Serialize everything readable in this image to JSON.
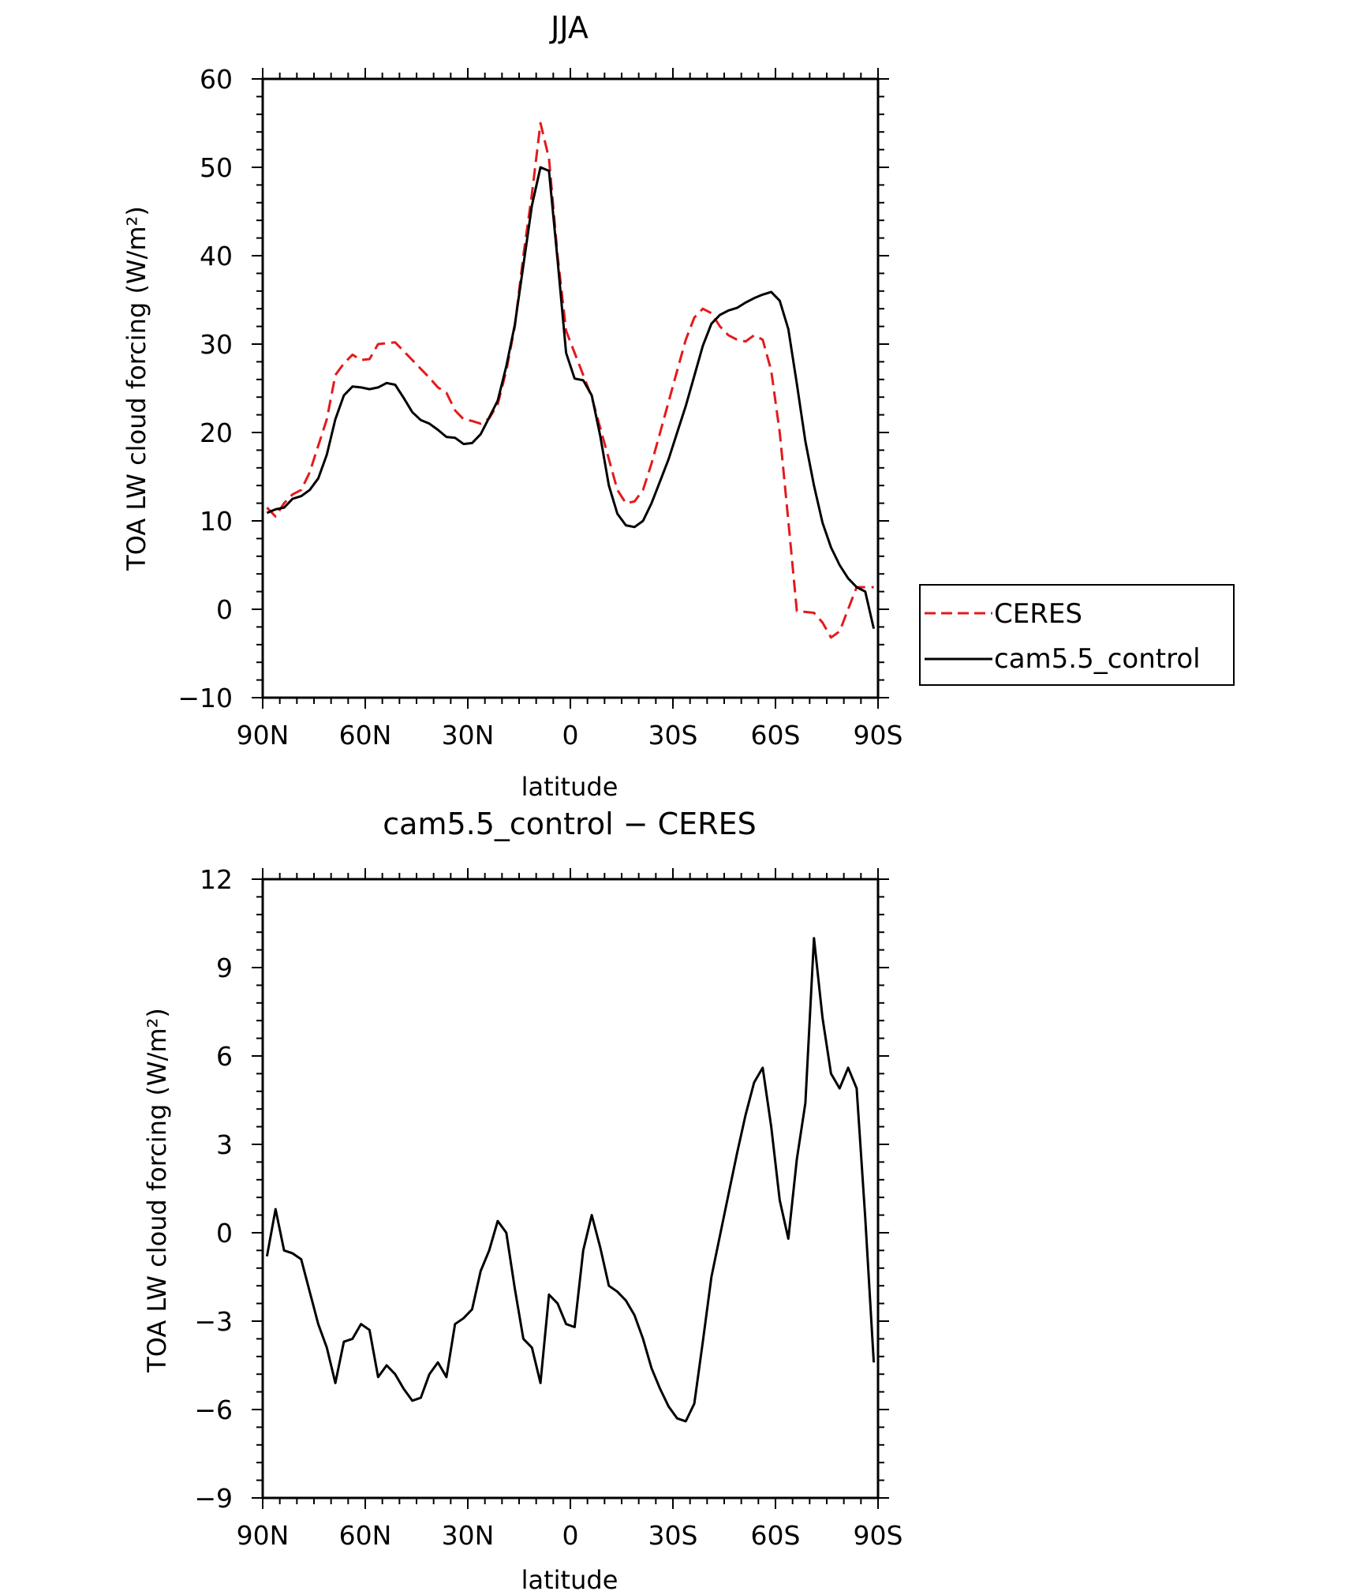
{
  "chart_data": [
    {
      "type": "line",
      "title": "JJA",
      "xlabel": "latitude",
      "ylabel": "TOA LW cloud forcing (W/m²)",
      "xlim": [
        90,
        -90
      ],
      "ylim": [
        -10,
        60
      ],
      "xticks": [
        90,
        60,
        30,
        0,
        -30,
        -60,
        -90
      ],
      "xtick_labels": [
        "90N",
        "60N",
        "30N",
        "0",
        "30S",
        "60S",
        "90S"
      ],
      "yticks": [
        -10,
        0,
        10,
        20,
        30,
        40,
        50,
        60
      ],
      "ytick_labels": [
        "−10",
        "0",
        "10",
        "20",
        "30",
        "40",
        "50",
        "60"
      ],
      "legend_position": "right",
      "series": [
        {
          "name": "CERES",
          "color": "#e31a1c",
          "dash": "dashed",
          "x": [
            88.75,
            86.25,
            83.75,
            81.25,
            78.75,
            76.25,
            73.75,
            71.25,
            68.75,
            66.25,
            63.75,
            61.25,
            58.75,
            56.25,
            53.75,
            51.25,
            48.75,
            46.25,
            43.75,
            41.25,
            38.75,
            36.25,
            33.75,
            31.25,
            28.75,
            26.25,
            23.75,
            21.25,
            18.75,
            16.25,
            13.75,
            11.25,
            8.75,
            6.25,
            3.75,
            1.25,
            -1.25,
            -3.75,
            -6.25,
            -8.75,
            -11.25,
            -13.75,
            -16.25,
            -18.75,
            -21.25,
            -23.75,
            -26.25,
            -28.75,
            -31.25,
            -33.75,
            -36.25,
            -38.75,
            -41.25,
            -43.75,
            -46.25,
            -48.75,
            -51.25,
            -53.75,
            -56.25,
            -58.75,
            -61.25,
            -63.75,
            -66.25,
            -68.75,
            -71.25,
            -73.75,
            -76.25,
            -78.75,
            -81.25,
            -83.75,
            -86.25,
            -88.75
          ],
          "y": [
            11.5,
            10.5,
            12.0,
            13.0,
            13.5,
            15.5,
            18.5,
            21.5,
            26.5,
            27.8,
            28.8,
            28.2,
            28.3,
            30.0,
            30.1,
            30.2,
            29.2,
            28.2,
            27.2,
            26.2,
            25.1,
            24.5,
            22.5,
            21.5,
            21.3,
            21.0,
            21.6,
            23.2,
            27.0,
            32.0,
            40.0,
            47.0,
            55.0,
            51.0,
            40.0,
            31.5,
            29.0,
            26.5,
            24.0,
            20.5,
            17.0,
            13.5,
            12.0,
            12.2,
            13.5,
            16.5,
            20.0,
            23.5,
            27.0,
            30.5,
            33.0,
            34.0,
            33.5,
            32.0,
            31.0,
            30.5,
            30.3,
            31.0,
            30.5,
            27.0,
            20.0,
            10.0,
            -0.2,
            -0.3,
            -0.4,
            -1.5,
            -3.2,
            -2.5,
            0.0,
            2.5,
            2.5,
            2.5
          ]
        },
        {
          "name": "cam5.5_control",
          "color": "#000000",
          "dash": "solid",
          "x": [
            88.75,
            86.25,
            83.75,
            81.25,
            78.75,
            76.25,
            73.75,
            71.25,
            68.75,
            66.25,
            63.75,
            61.25,
            58.75,
            56.25,
            53.75,
            51.25,
            48.75,
            46.25,
            43.75,
            41.25,
            38.75,
            36.25,
            33.75,
            31.25,
            28.75,
            26.25,
            23.75,
            21.25,
            18.75,
            16.25,
            13.75,
            11.25,
            8.75,
            6.25,
            3.75,
            1.25,
            -1.25,
            -3.75,
            -6.25,
            -8.75,
            -11.25,
            -13.75,
            -16.25,
            -18.75,
            -21.25,
            -23.75,
            -26.25,
            -28.75,
            -31.25,
            -33.75,
            -36.25,
            -38.75,
            -41.25,
            -43.75,
            -46.25,
            -48.75,
            -51.25,
            -53.75,
            -56.25,
            -58.75,
            -61.25,
            -63.75,
            -66.25,
            -68.75,
            -71.25,
            -73.75,
            -76.25,
            -78.75,
            -81.25,
            -83.75,
            -86.25,
            -88.75
          ],
          "y": [
            10.9,
            11.3,
            11.5,
            12.5,
            12.8,
            13.5,
            14.8,
            17.5,
            21.5,
            24.2,
            25.2,
            25.1,
            24.9,
            25.1,
            25.6,
            25.4,
            23.9,
            22.3,
            21.4,
            21.0,
            20.3,
            19.5,
            19.4,
            18.7,
            18.8,
            19.8,
            21.7,
            23.6,
            27.5,
            32.2,
            38.9,
            45.7,
            50.0,
            49.6,
            39.5,
            29.0,
            26.1,
            25.9,
            24.2,
            19.6,
            14.0,
            10.8,
            9.5,
            9.3,
            10.0,
            12.0,
            14.5,
            17.0,
            20.0,
            23.0,
            26.4,
            29.8,
            32.3,
            33.3,
            33.8,
            34.1,
            34.7,
            35.2,
            35.6,
            35.9,
            34.9,
            31.7,
            25.5,
            19.0,
            14.0,
            9.8,
            7.0,
            5.0,
            3.5,
            2.5,
            2.0,
            -2.2
          ]
        }
      ]
    },
    {
      "type": "line",
      "title": "cam5.5_control − CERES",
      "xlabel": "latitude",
      "ylabel": "TOA LW cloud forcing (W/m²)",
      "xlim": [
        90,
        -90
      ],
      "ylim": [
        -9,
        12
      ],
      "xticks": [
        90,
        60,
        30,
        0,
        -30,
        -60,
        -90
      ],
      "xtick_labels": [
        "90N",
        "60N",
        "30N",
        "0",
        "30S",
        "60S",
        "90S"
      ],
      "yticks": [
        -9,
        -6,
        -3,
        0,
        3,
        6,
        9,
        12
      ],
      "ytick_labels": [
        "−9",
        "−6",
        "−3",
        "0",
        "3",
        "6",
        "9",
        "12"
      ],
      "series": [
        {
          "color": "#000000",
          "dash": "solid",
          "x": [
            88.75,
            86.25,
            83.75,
            81.25,
            78.75,
            76.25,
            73.75,
            71.25,
            68.75,
            66.25,
            63.75,
            61.25,
            58.75,
            56.25,
            53.75,
            51.25,
            48.75,
            46.25,
            43.75,
            41.25,
            38.75,
            36.25,
            33.75,
            31.25,
            28.75,
            26.25,
            23.75,
            21.25,
            18.75,
            16.25,
            13.75,
            11.25,
            8.75,
            6.25,
            3.75,
            1.25,
            -1.25,
            -3.75,
            -6.25,
            -8.75,
            -11.25,
            -13.75,
            -16.25,
            -18.75,
            -21.25,
            -23.75,
            -26.25,
            -28.75,
            -31.25,
            -33.75,
            -36.25,
            -38.75,
            -41.25,
            -43.75,
            -46.25,
            -48.75,
            -51.25,
            -53.75,
            -56.25,
            -58.75,
            -61.25,
            -63.75,
            -66.25,
            -68.75,
            -71.25,
            -73.75,
            -76.25,
            -78.75,
            -81.25,
            -83.75,
            -86.25,
            -88.75
          ],
          "y": [
            -0.8,
            0.8,
            -0.6,
            -0.7,
            -0.9,
            -2.0,
            -3.1,
            -3.9,
            -5.1,
            -3.7,
            -3.6,
            -3.1,
            -3.3,
            -4.9,
            -4.5,
            -4.8,
            -5.3,
            -5.7,
            -5.6,
            -4.8,
            -4.4,
            -4.9,
            -3.1,
            -2.9,
            -2.6,
            -1.3,
            -0.6,
            0.4,
            0.0,
            -1.9,
            -3.6,
            -3.9,
            -5.1,
            -2.1,
            -2.4,
            -3.1,
            -3.2,
            -0.6,
            0.6,
            -0.5,
            -1.8,
            -2.0,
            -2.3,
            -2.8,
            -3.6,
            -4.6,
            -5.3,
            -5.9,
            -6.3,
            -6.4,
            -5.8,
            -3.7,
            -1.5,
            -0.1,
            1.3,
            2.7,
            4.0,
            5.1,
            5.6,
            3.6,
            1.1,
            -0.2,
            2.5,
            4.4,
            10.0,
            7.3,
            5.4,
            4.9,
            5.6,
            4.9,
            0.5,
            -4.4
          ]
        }
      ]
    }
  ]
}
